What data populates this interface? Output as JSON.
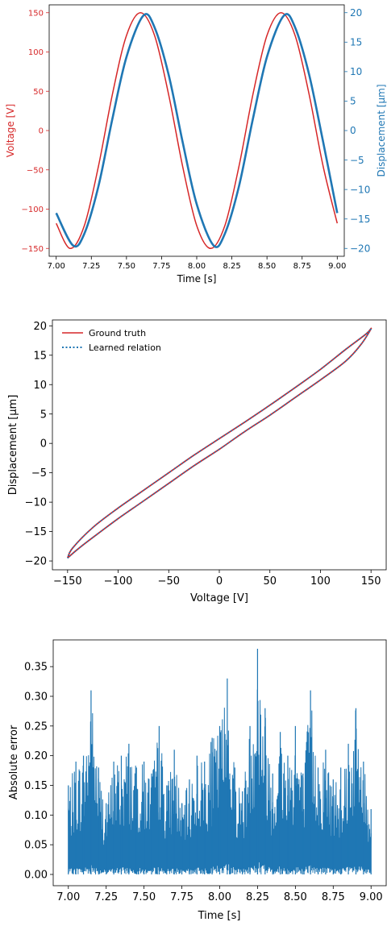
{
  "colors": {
    "voltage": "#d62728",
    "displacement": "#1f77b4",
    "ground_truth": "#d62728",
    "learned": "#1f77b4",
    "error": "#1f77b4"
  },
  "chart_data": [
    {
      "type": "line",
      "xlabel": "Time [s]",
      "ylabel_left": "Voltage [V]",
      "ylabel_right": "Displacement [μm]",
      "xlim": [
        6.95,
        9.05
      ],
      "ylim_left": [
        -160,
        160
      ],
      "ylim_right": [
        -21.33,
        21.33
      ],
      "xticks": [
        7.0,
        7.25,
        7.5,
        7.75,
        8.0,
        8.25,
        8.5,
        8.75,
        9.0
      ],
      "xtick_labels": [
        "7.00",
        "7.25",
        "7.50",
        "7.75",
        "8.00",
        "8.25",
        "8.50",
        "8.75",
        "9.00"
      ],
      "yticks_left": [
        -150,
        -100,
        -50,
        0,
        50,
        100,
        150
      ],
      "ytick_labels_left": [
        "−150",
        "−100",
        "−50",
        "0",
        "50",
        "100",
        "150"
      ],
      "yticks_right": [
        -20,
        -15,
        -10,
        -5,
        0,
        5,
        10,
        15,
        20
      ],
      "ytick_labels_right": [
        "−20",
        "−15",
        "−10",
        "−5",
        "0",
        "5",
        "10",
        "15",
        "20"
      ],
      "series": [
        {
          "axis": "left",
          "x": [
            7.0,
            7.1,
            7.2,
            7.3,
            7.4,
            7.5,
            7.6,
            7.7,
            7.8,
            7.9,
            8.0,
            8.1,
            8.2,
            8.3,
            8.4,
            8.5,
            8.6,
            8.7,
            8.8,
            8.9,
            9.0
          ],
          "y": [
            -118,
            -150,
            -121,
            -46,
            46,
            121,
            150,
            121,
            46,
            -46,
            -121,
            -150,
            -121,
            -46,
            46,
            121,
            150,
            121,
            46,
            -46,
            -118
          ]
        },
        {
          "axis": "right",
          "x": [
            7.0,
            7.12,
            7.2,
            7.3,
            7.4,
            7.5,
            7.62,
            7.7,
            7.8,
            7.9,
            8.0,
            8.12,
            8.2,
            8.3,
            8.4,
            8.5,
            8.62,
            8.7,
            8.8,
            8.9,
            9.0
          ],
          "y": [
            -14,
            -19.5,
            -17.5,
            -9.5,
            2,
            12.5,
            19.5,
            17.5,
            9.5,
            -2,
            -12.5,
            -19.5,
            -17.5,
            -9.5,
            2,
            12.5,
            19.5,
            17.5,
            9.5,
            -2,
            -14
          ]
        }
      ]
    },
    {
      "type": "line",
      "xlabel": "Voltage [V]",
      "ylabel": "Displacement [μm]",
      "xlim": [
        -165,
        165
      ],
      "ylim": [
        -21.5,
        21
      ],
      "xticks": [
        -150,
        -100,
        -50,
        0,
        50,
        100,
        150
      ],
      "xtick_labels": [
        "−150",
        "−100",
        "−50",
        "0",
        "50",
        "100",
        "150"
      ],
      "yticks": [
        -20,
        -15,
        -10,
        -5,
        0,
        5,
        10,
        15,
        20
      ],
      "ytick_labels": [
        "−20",
        "−15",
        "−10",
        "−5",
        "0",
        "5",
        "10",
        "15",
        "20"
      ],
      "legend_position": "top-left",
      "series": [
        {
          "name": "Ground truth",
          "style": "solid",
          "x": [
            -150,
            -140,
            -125,
            -100,
            -75,
            -50,
            -25,
            0,
            25,
            50,
            75,
            100,
            125,
            140,
            150,
            145,
            125,
            100,
            75,
            50,
            25,
            0,
            -25,
            -50,
            -75,
            -100,
            -125,
            -145,
            -150
          ],
          "y": [
            -19.5,
            -18.0,
            -16.0,
            -12.8,
            -9.8,
            -6.8,
            -3.8,
            -1.0,
            2.0,
            4.8,
            7.8,
            10.8,
            14.0,
            16.8,
            19.5,
            18.6,
            16.0,
            12.6,
            9.5,
            6.5,
            3.6,
            0.8,
            -2.0,
            -5.0,
            -8.0,
            -11.0,
            -14.3,
            -17.8,
            -19.5
          ]
        },
        {
          "name": "Learned relation",
          "style": "dotted",
          "x": [
            -150,
            -140,
            -125,
            -100,
            -75,
            -50,
            -25,
            0,
            25,
            50,
            75,
            100,
            125,
            140,
            150,
            145,
            125,
            100,
            75,
            50,
            25,
            0,
            -25,
            -50,
            -75,
            -100,
            -125,
            -145,
            -150
          ],
          "y": [
            -19.5,
            -18.0,
            -16.0,
            -12.8,
            -9.8,
            -6.8,
            -3.8,
            -1.0,
            2.0,
            4.8,
            7.8,
            10.8,
            14.0,
            16.8,
            19.5,
            18.6,
            16.0,
            12.6,
            9.5,
            6.5,
            3.6,
            0.8,
            -2.0,
            -5.0,
            -8.0,
            -11.0,
            -14.3,
            -17.8,
            -19.5
          ]
        }
      ]
    },
    {
      "type": "line",
      "xlabel": "Time [s]",
      "ylabel": "Absolute error",
      "xlim": [
        6.9,
        9.1
      ],
      "ylim": [
        -0.019,
        0.395
      ],
      "xticks": [
        7.0,
        7.25,
        7.5,
        7.75,
        8.0,
        8.25,
        8.5,
        8.75,
        9.0
      ],
      "xtick_labels": [
        "7.00",
        "7.25",
        "7.50",
        "7.75",
        "8.00",
        "8.25",
        "8.50",
        "8.75",
        "9.00"
      ],
      "yticks": [
        0.0,
        0.05,
        0.1,
        0.15,
        0.2,
        0.25,
        0.3,
        0.35
      ],
      "ytick_labels": [
        "0.00",
        "0.05",
        "0.10",
        "0.15",
        "0.20",
        "0.25",
        "0.30",
        "0.35"
      ],
      "series": [
        {
          "x": [
            7.0,
            7.05,
            7.1,
            7.15,
            7.2,
            7.25,
            7.3,
            7.35,
            7.4,
            7.45,
            7.5,
            7.55,
            7.6,
            7.65,
            7.7,
            7.75,
            7.8,
            7.85,
            7.9,
            7.95,
            8.0,
            8.05,
            8.1,
            8.15,
            8.2,
            8.25,
            8.3,
            8.35,
            8.4,
            8.45,
            8.5,
            8.55,
            8.6,
            8.65,
            8.7,
            8.75,
            8.8,
            8.85,
            8.9,
            8.95,
            9.0
          ],
          "peak": [
            0.15,
            0.19,
            0.2,
            0.31,
            0.18,
            0.12,
            0.19,
            0.2,
            0.22,
            0.18,
            0.19,
            0.17,
            0.25,
            0.15,
            0.21,
            0.12,
            0.16,
            0.2,
            0.19,
            0.23,
            0.25,
            0.33,
            0.18,
            0.14,
            0.25,
            0.38,
            0.28,
            0.17,
            0.24,
            0.2,
            0.25,
            0.17,
            0.31,
            0.18,
            0.21,
            0.16,
            0.18,
            0.22,
            0.28,
            0.19,
            0.11
          ]
        }
      ]
    }
  ]
}
